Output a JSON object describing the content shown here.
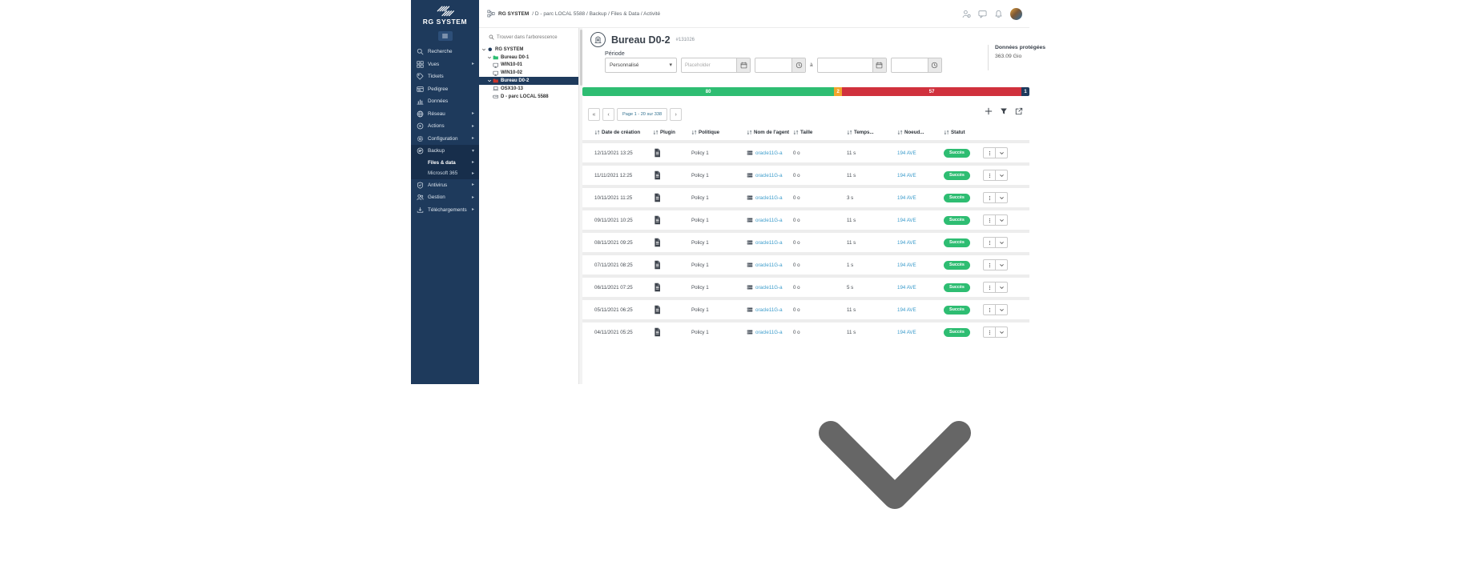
{
  "topbar": {
    "breadcrumb": {
      "root": "RG SYSTEM",
      "path": " / D - parc LOCAL 5588 / Backup / Files & Data / Activité"
    },
    "right_icons": [
      "admin-user",
      "chat",
      "bell",
      "avatar"
    ]
  },
  "sidebar": {
    "brand": "RG SYSTEM",
    "items": [
      {
        "label": "Recherche",
        "icon": "search",
        "caret": null
      },
      {
        "label": "Vues",
        "icon": "grid",
        "caret": "right"
      },
      {
        "label": "Tickets",
        "icon": "ticket",
        "caret": null
      },
      {
        "label": "Pedigree",
        "icon": "idcard",
        "caret": null
      },
      {
        "label": "Données",
        "icon": "chart",
        "caret": null
      },
      {
        "label": "Réseau",
        "icon": "globe",
        "caret": "right"
      },
      {
        "label": "Actions",
        "icon": "play",
        "caret": "right"
      },
      {
        "label": "Configuration",
        "icon": "gear",
        "caret": "right"
      },
      {
        "label": "Backup",
        "icon": "backup",
        "caret": "down",
        "active": true,
        "children": [
          {
            "label": "Files & data",
            "caret": "right",
            "active": true
          },
          {
            "label": "Microsoft 365",
            "caret": "right",
            "active": false
          }
        ]
      },
      {
        "label": "Antivirus",
        "icon": "shield",
        "caret": "right"
      },
      {
        "label": "Gestion",
        "icon": "users",
        "caret": "right"
      },
      {
        "label": "Téléchargements",
        "icon": "download",
        "caret": "right"
      }
    ]
  },
  "tree": {
    "search_placeholder": "Trouver dans l'arborescence",
    "nodes": [
      {
        "label": "RG SYSTEM",
        "icon": "dot",
        "level": 0,
        "expander": true,
        "selected": false
      },
      {
        "label": "Bureau D0-1",
        "icon": "folder-green",
        "level": 1,
        "expander": true,
        "selected": false
      },
      {
        "label": "WIN10-01",
        "icon": "monitor",
        "level": 2,
        "expander": false,
        "selected": false
      },
      {
        "label": "WIN10-02",
        "icon": "monitor",
        "level": 2,
        "expander": false,
        "selected": false
      },
      {
        "label": "Bureau D0-2",
        "icon": "folder-red",
        "level": 1,
        "expander": true,
        "selected": true
      },
      {
        "label": "OSX10-13",
        "icon": "laptop",
        "level": 2,
        "expander": false,
        "selected": false
      },
      {
        "label": "D - parc LOCAL 5588",
        "icon": "disk",
        "level": 2,
        "expander": false,
        "selected": false
      }
    ]
  },
  "header": {
    "title": "Bureau D0-2",
    "ref": "#131026"
  },
  "periode": {
    "label": "Période",
    "select_value": "Personnalisé",
    "date_placeholder": "Placeholder",
    "separator": "à"
  },
  "protected": {
    "label": "Données protégées",
    "value": "363.09 Gio"
  },
  "status_bar": {
    "segments": [
      {
        "label": "80",
        "value": 80,
        "color": "#2ebd72"
      },
      {
        "label": "2",
        "value": 2,
        "color": "#f2a52c"
      },
      {
        "label": "57",
        "value": 57,
        "color": "#d0313d"
      },
      {
        "label": "1",
        "value": 1,
        "color": "#1e3a5c"
      }
    ]
  },
  "pagination": {
    "first": "«",
    "prev": "‹",
    "label": "Page 1 - 20 sur 338",
    "next": "›"
  },
  "toolbar_icons": [
    "plus",
    "funnel",
    "export"
  ],
  "table": {
    "columns": [
      "Date de création",
      "Plugin",
      "Politique",
      "Nom de l'agent",
      "Taille",
      "Temps...",
      "Noeud...",
      "Statut"
    ],
    "rows": [
      {
        "date": "12/11/2021 13:25",
        "policy": "Policy 1",
        "agent": "oracle11G-a",
        "size": "0 o",
        "elapsed": "11 s",
        "node": "194 AVE",
        "status": "Succès"
      },
      {
        "date": "11/11/2021 12:25",
        "policy": "Policy 1",
        "agent": "oracle11G-a",
        "size": "0 o",
        "elapsed": "11 s",
        "node": "194 AVE",
        "status": "Succès"
      },
      {
        "date": "10/11/2021 11:25",
        "policy": "Policy 1",
        "agent": "oracle11G-a",
        "size": "0 o",
        "elapsed": "3 s",
        "node": "194 AVE",
        "status": "Succès"
      },
      {
        "date": "09/11/2021 10:25",
        "policy": "Policy 1",
        "agent": "oracle11G-a",
        "size": "0 o",
        "elapsed": "11 s",
        "node": "194 AVE",
        "status": "Succès"
      },
      {
        "date": "08/11/2021 09:25",
        "policy": "Policy 1",
        "agent": "oracle11G-a",
        "size": "0 o",
        "elapsed": "11 s",
        "node": "194 AVE",
        "status": "Succès"
      },
      {
        "date": "07/11/2021 08:25",
        "policy": "Policy 1",
        "agent": "oracle11G-a",
        "size": "0 o",
        "elapsed": "1 s",
        "node": "194 AVE",
        "status": "Succès"
      },
      {
        "date": "06/11/2021 07:25",
        "policy": "Policy 1",
        "agent": "oracle11G-a",
        "size": "0 o",
        "elapsed": "5 s",
        "node": "194 AVE",
        "status": "Succès"
      },
      {
        "date": "05/11/2021 06:25",
        "policy": "Policy 1",
        "agent": "oracle11G-a",
        "size": "0 o",
        "elapsed": "11 s",
        "node": "194 AVE",
        "status": "Succès"
      },
      {
        "date": "04/11/2021 05:25",
        "policy": "Policy 1",
        "agent": "oracle11G-a",
        "size": "0 o",
        "elapsed": "11 s",
        "node": "194 AVE",
        "status": "Succès"
      }
    ]
  }
}
